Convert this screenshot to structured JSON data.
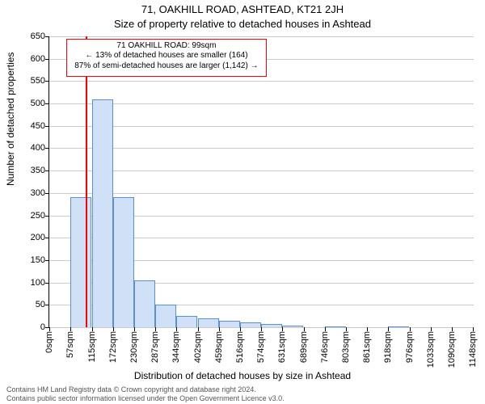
{
  "title_line1": "71, OAKHILL ROAD, ASHTEAD, KT21 2JH",
  "title_line2": "Size of property relative to detached houses in Ashtead",
  "ylabel": "Number of detached properties",
  "xlabel": "Distribution of detached houses by size in Ashtead",
  "footer_line1": "Contains HM Land Registry data © Crown copyright and database right 2024.",
  "footer_line2": "Contains public sector information licensed under the Open Government Licence v3.0.",
  "chart": {
    "type": "histogram",
    "background_color": "#ffffff",
    "grid_color": "#cccccc",
    "axis_color": "#000000",
    "bar_fill": "#cfe0f7",
    "bar_stroke": "#5a8fd6",
    "marker_color": "#ff0000",
    "annotation_border": "#ff0000",
    "tick_fontsize": 11,
    "label_fontsize": 12,
    "title_fontsize": 13,
    "x_min": 0,
    "x_max": 1150,
    "y_min": 0,
    "y_max": 650,
    "y_ticks": [
      0,
      50,
      100,
      150,
      200,
      250,
      300,
      350,
      400,
      450,
      500,
      550,
      600,
      650
    ],
    "x_ticks": [
      {
        "v": 0,
        "label": "0sqm"
      },
      {
        "v": 57,
        "label": "57sqm"
      },
      {
        "v": 115,
        "label": "115sqm"
      },
      {
        "v": 172,
        "label": "172sqm"
      },
      {
        "v": 230,
        "label": "230sqm"
      },
      {
        "v": 287,
        "label": "287sqm"
      },
      {
        "v": 344,
        "label": "344sqm"
      },
      {
        "v": 402,
        "label": "402sqm"
      },
      {
        "v": 459,
        "label": "459sqm"
      },
      {
        "v": 516,
        "label": "516sqm"
      },
      {
        "v": 574,
        "label": "574sqm"
      },
      {
        "v": 631,
        "label": "631sqm"
      },
      {
        "v": 689,
        "label": "689sqm"
      },
      {
        "v": 746,
        "label": "746sqm"
      },
      {
        "v": 803,
        "label": "803sqm"
      },
      {
        "v": 861,
        "label": "861sqm"
      },
      {
        "v": 918,
        "label": "918sqm"
      },
      {
        "v": 976,
        "label": "976sqm"
      },
      {
        "v": 1033,
        "label": "1033sqm"
      },
      {
        "v": 1090,
        "label": "1090sqm"
      },
      {
        "v": 1148,
        "label": "1148sqm"
      }
    ],
    "bin_width": 57,
    "bars": [
      {
        "x0": 57,
        "count": 290
      },
      {
        "x0": 115,
        "count": 510
      },
      {
        "x0": 172,
        "count": 290
      },
      {
        "x0": 230,
        "count": 105
      },
      {
        "x0": 287,
        "count": 50
      },
      {
        "x0": 344,
        "count": 25
      },
      {
        "x0": 402,
        "count": 20
      },
      {
        "x0": 459,
        "count": 15
      },
      {
        "x0": 516,
        "count": 10
      },
      {
        "x0": 574,
        "count": 8
      },
      {
        "x0": 631,
        "count": 3
      },
      {
        "x0": 689,
        "count": 0
      },
      {
        "x0": 746,
        "count": 2
      },
      {
        "x0": 803,
        "count": 0
      },
      {
        "x0": 861,
        "count": 0
      },
      {
        "x0": 918,
        "count": 2
      },
      {
        "x0": 976,
        "count": 0
      },
      {
        "x0": 1033,
        "count": 0
      },
      {
        "x0": 1090,
        "count": 0
      }
    ],
    "marker_x": 99,
    "annotation": {
      "line1": "71 OAKHILL ROAD: 99sqm",
      "line2": "← 13% of detached houses are smaller (164)",
      "line3": "87% of semi-detached houses are larger (1,142) →",
      "box_left_data": 45,
      "box_top_data": 645,
      "box_width_data": 545,
      "box_height_data": 85
    }
  }
}
